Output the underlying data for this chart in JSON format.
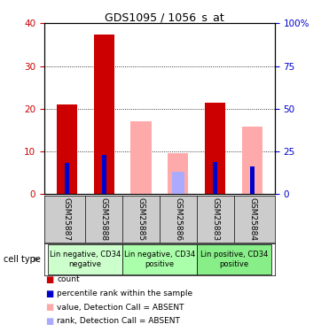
{
  "title": "GDS1095 / 1056_s_at",
  "samples": [
    "GSM25887",
    "GSM25888",
    "GSM25885",
    "GSM25886",
    "GSM25883",
    "GSM25884"
  ],
  "count_values": [
    21,
    37.3,
    null,
    null,
    21.5,
    null
  ],
  "rank_values": [
    18.5,
    22.8,
    null,
    null,
    18.7,
    16.2
  ],
  "absent_value_values": [
    null,
    null,
    17,
    9.7,
    null,
    null
  ],
  "absent_rank_values": [
    null,
    null,
    null,
    13.0,
    null,
    null
  ],
  "absent_count_values": [
    null,
    null,
    null,
    null,
    null,
    15.8
  ],
  "cell_types": [
    {
      "label": "Lin negative, CD34\nnegative",
      "start": 0,
      "end": 1,
      "color": "#ccffcc"
    },
    {
      "label": "Lin negative, CD34\npositive",
      "start": 2,
      "end": 3,
      "color": "#aaffaa"
    },
    {
      "label": "Lin positive, CD34\npositive",
      "start": 4,
      "end": 5,
      "color": "#88ee88"
    }
  ],
  "ylim_left": [
    0,
    40
  ],
  "ylim_right": [
    0,
    100
  ],
  "yticks_left": [
    0,
    10,
    20,
    30,
    40
  ],
  "yticks_right": [
    0,
    25,
    50,
    75,
    100
  ],
  "ytick_labels_right": [
    "0",
    "25",
    "50",
    "75",
    "100%"
  ],
  "left_tick_color": "#cc0000",
  "right_tick_color": "#0000cc",
  "count_color": "#cc0000",
  "rank_color": "#0000cc",
  "absent_value_color": "#ffaaaa",
  "absent_rank_color": "#aaaaff",
  "bg_color": "#cccccc",
  "legend_items": [
    {
      "color": "#cc0000",
      "label": "count"
    },
    {
      "color": "#0000cc",
      "label": "percentile rank within the sample"
    },
    {
      "color": "#ffaaaa",
      "label": "value, Detection Call = ABSENT"
    },
    {
      "color": "#aaaaff",
      "label": "rank, Detection Call = ABSENT"
    }
  ]
}
